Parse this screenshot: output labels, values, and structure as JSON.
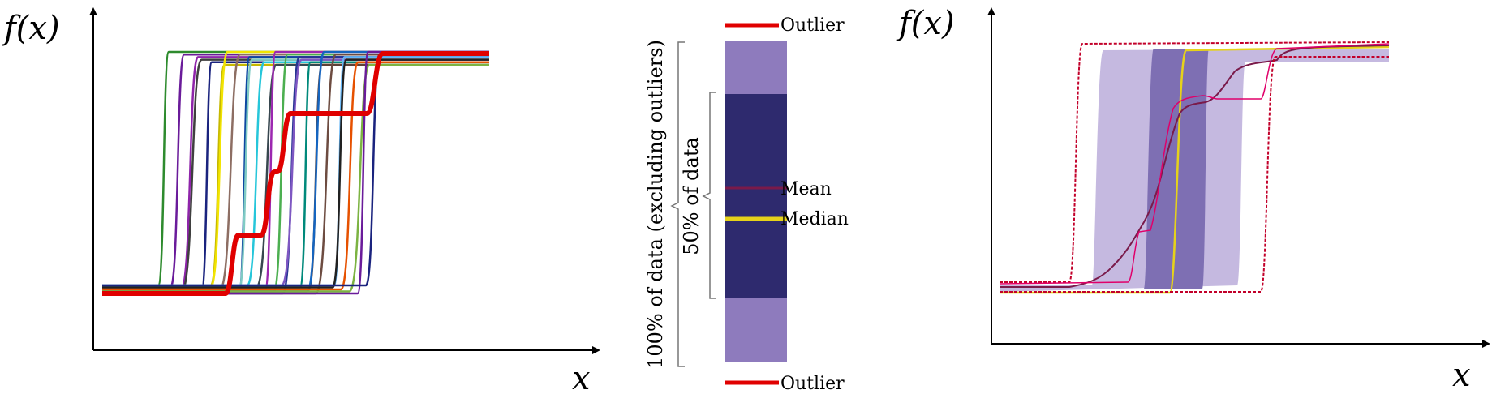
{
  "left_panel": {
    "y_label": "f(x)",
    "x_label": "x",
    "curve_colors": [
      "#2e8b2e",
      "#6a1b9a",
      "#8e24aa",
      "#3f3f3f",
      "#1a237e",
      "#c6b800",
      "#f2e400",
      "#8d6e63",
      "#0d47a1",
      "#80cbc4",
      "#26c6da",
      "#37474f",
      "#9c27b0",
      "#4caf50",
      "#283593",
      "#7e57c2",
      "#00897b",
      "#5d4037",
      "#1565c0",
      "#6d4c41",
      "#64b5f6",
      "#212121",
      "#e65100",
      "#7cb342",
      "#6a1b9a",
      "#1a237e"
    ],
    "outlier_color": "#e00000"
  },
  "legend": {
    "outlier_top_label": "Outlier",
    "outlier_bottom_label": "Outlier",
    "mean_label": "Mean",
    "median_label": "Median",
    "bracket_100_label": "100% of data (excluding outliers)",
    "bracket_50_label": "50% of data",
    "colors": {
      "band_outer": "#8e7bbd",
      "band_inner": "#2e2a6e",
      "mean": "#7a1a4a",
      "median": "#e6d21a",
      "outlier": "#e00000"
    }
  },
  "right_panel": {
    "y_label": "f(x)",
    "x_label": "x",
    "colors": {
      "band_outer": "#c5b9e0",
      "band_inner": "#7e6fb3",
      "mean": "#7a1a4a",
      "median": "#e6d21a",
      "outlier": "#c2002a"
    }
  }
}
